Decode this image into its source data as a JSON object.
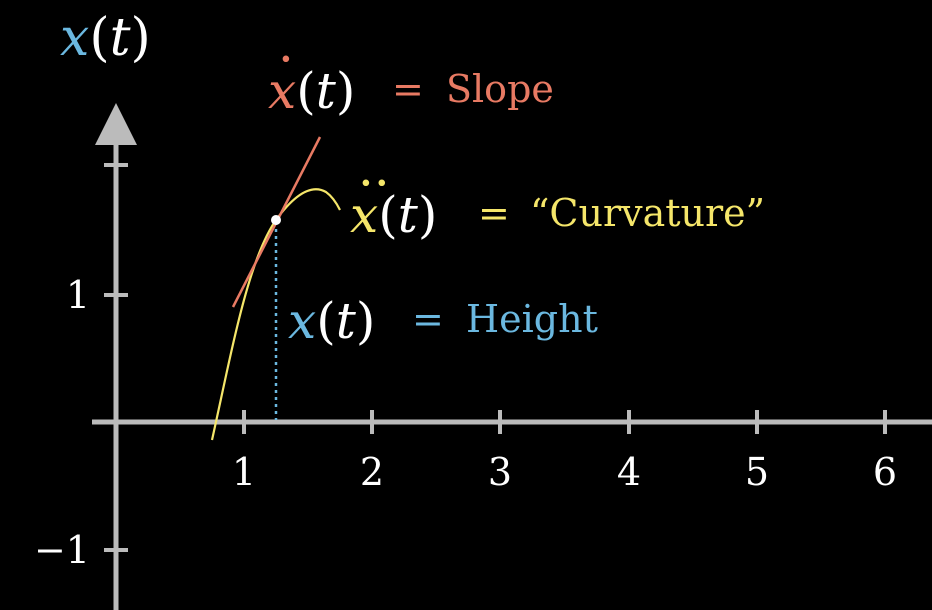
{
  "colors": {
    "background": "#000000",
    "axis": "#bbbbbb",
    "white": "#ffffff",
    "blue": "#6bb8e0",
    "red": "#e87a63",
    "yellow": "#f5e66a"
  },
  "axis_label": {
    "x": "x",
    "paren_open": "(",
    "t": "t",
    "paren_close": ")"
  },
  "x_ticks": [
    "1",
    "2",
    "3",
    "4",
    "5",
    "6"
  ],
  "y_ticks": [
    "1",
    "−1"
  ],
  "slope_label": {
    "x": "x",
    "paren_open": "(",
    "t": "t",
    "paren_close": ")",
    "equals": "=",
    "word": "Slope",
    "dot": "·"
  },
  "curvature_label": {
    "x": "x",
    "paren_open": "(",
    "t": "t",
    "paren_close": ")",
    "equals": "=",
    "word": "“Curvature”",
    "dots": "··"
  },
  "height_label": {
    "x": "x",
    "paren_open": "(",
    "t": "t",
    "paren_close": ")",
    "equals": "=",
    "word": "Height"
  }
}
